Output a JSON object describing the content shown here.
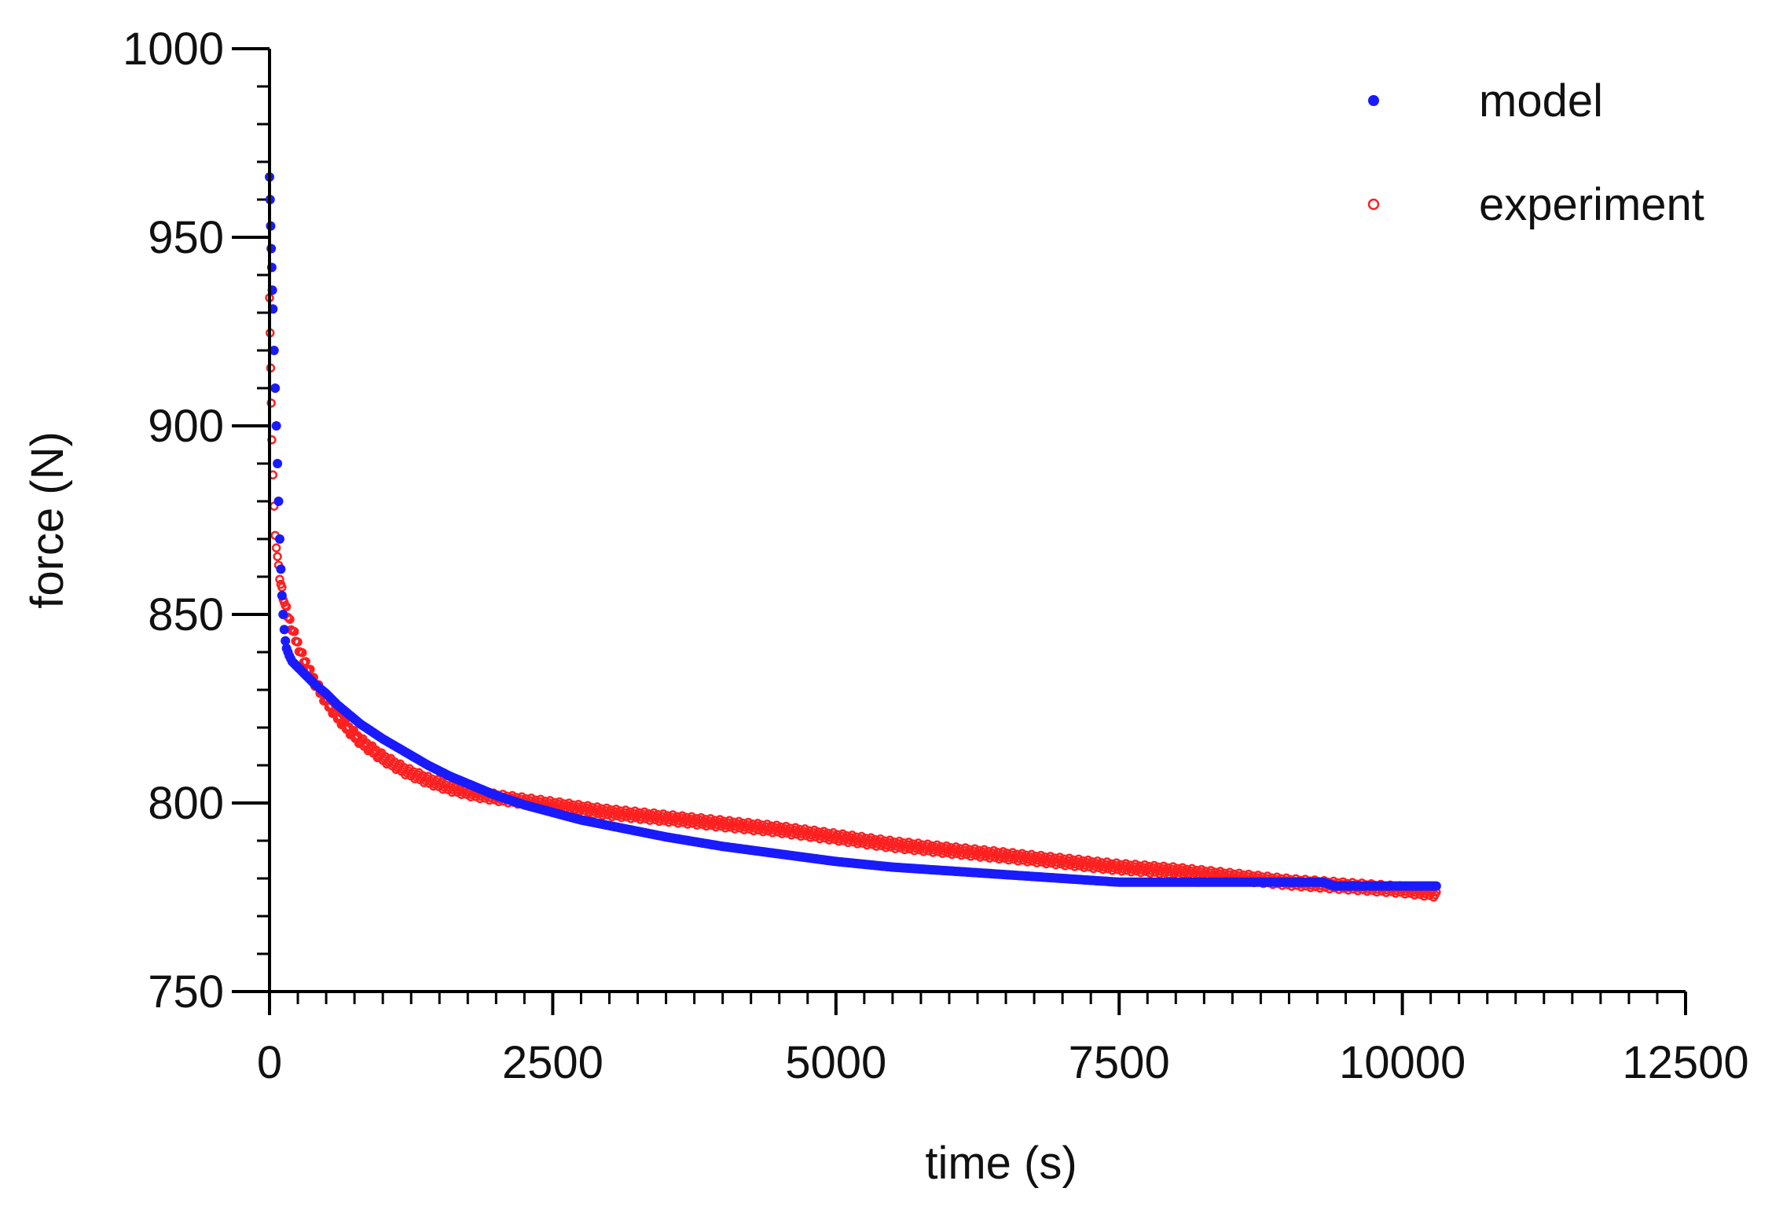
{
  "chart_data": {
    "type": "scatter",
    "title": "",
    "xlabel": "time (s)",
    "ylabel": "force (N)",
    "xlim": [
      0,
      12500
    ],
    "ylim": [
      750,
      1000
    ],
    "x_ticks": [
      0,
      2500,
      5000,
      7500,
      10000,
      12500
    ],
    "x_tick_labels": [
      "0",
      "2500",
      "5000",
      "7500",
      "10000",
      "12500"
    ],
    "x_minor_step": 250,
    "y_ticks": [
      750,
      800,
      850,
      900,
      950,
      1000
    ],
    "y_tick_labels": [
      "750",
      "800",
      "850",
      "900",
      "950",
      "1000"
    ],
    "y_minor_step": 10,
    "grid": false,
    "legend_position": "top-right",
    "series": [
      {
        "name": "model",
        "color": "#1a1aff",
        "marker": "filled-circle",
        "x": [
          0,
          5,
          10,
          15,
          20,
          25,
          30,
          40,
          50,
          60,
          70,
          80,
          90,
          100,
          110,
          120,
          130,
          140,
          150,
          175,
          200,
          250,
          300,
          350,
          400,
          500,
          600,
          700,
          800,
          1000,
          1200,
          1400,
          1600,
          1800,
          2000,
          2250,
          2500,
          2750,
          3000,
          3500,
          4000,
          4500,
          5000,
          5500,
          6000,
          6500,
          7000,
          7500,
          8000,
          8500,
          9000,
          9300,
          9400,
          9600,
          10000,
          10300
        ],
        "y": [
          966,
          960,
          953,
          947,
          942,
          936,
          931,
          920,
          910,
          900,
          890,
          880,
          870,
          862,
          855,
          850,
          846,
          843,
          841,
          839,
          837.5,
          836,
          834.5,
          833,
          831.5,
          829,
          826,
          823.5,
          821,
          817,
          813.5,
          810,
          807,
          804.5,
          802,
          799.5,
          797.5,
          795.5,
          794,
          791,
          788.5,
          786.5,
          784.5,
          783,
          782,
          781,
          780,
          779,
          779,
          779,
          779,
          779,
          778,
          778,
          778,
          778
        ]
      },
      {
        "name": "experiment",
        "color": "#ff2020",
        "marker": "open-circle",
        "x": [
          0,
          5,
          10,
          15,
          20,
          30,
          40,
          50,
          60,
          70,
          80,
          90,
          100,
          120,
          140,
          160,
          180,
          200,
          250,
          300,
          350,
          400,
          500,
          600,
          700,
          800,
          1000,
          1200,
          1400,
          1600,
          1800,
          2000,
          2250,
          2500,
          2750,
          3000,
          3500,
          4000,
          4500,
          5000,
          5500,
          6000,
          6500,
          7000,
          7500,
          8000,
          8500,
          9000,
          9500,
          10000,
          10300
        ],
        "y": [
          935,
          925,
          915,
          905,
          897,
          887,
          878,
          872,
          868,
          865,
          862,
          860,
          858,
          855,
          852,
          850,
          848,
          846,
          842,
          838,
          835,
          832,
          827,
          823,
          819.5,
          816.5,
          812,
          808.5,
          806,
          804,
          802.5,
          801.5,
          800.5,
          799.5,
          798.5,
          797.5,
          796,
          794.5,
          793,
          791,
          789,
          787.5,
          786,
          784.5,
          783,
          782,
          780.5,
          779,
          778,
          777,
          776
        ]
      }
    ]
  }
}
